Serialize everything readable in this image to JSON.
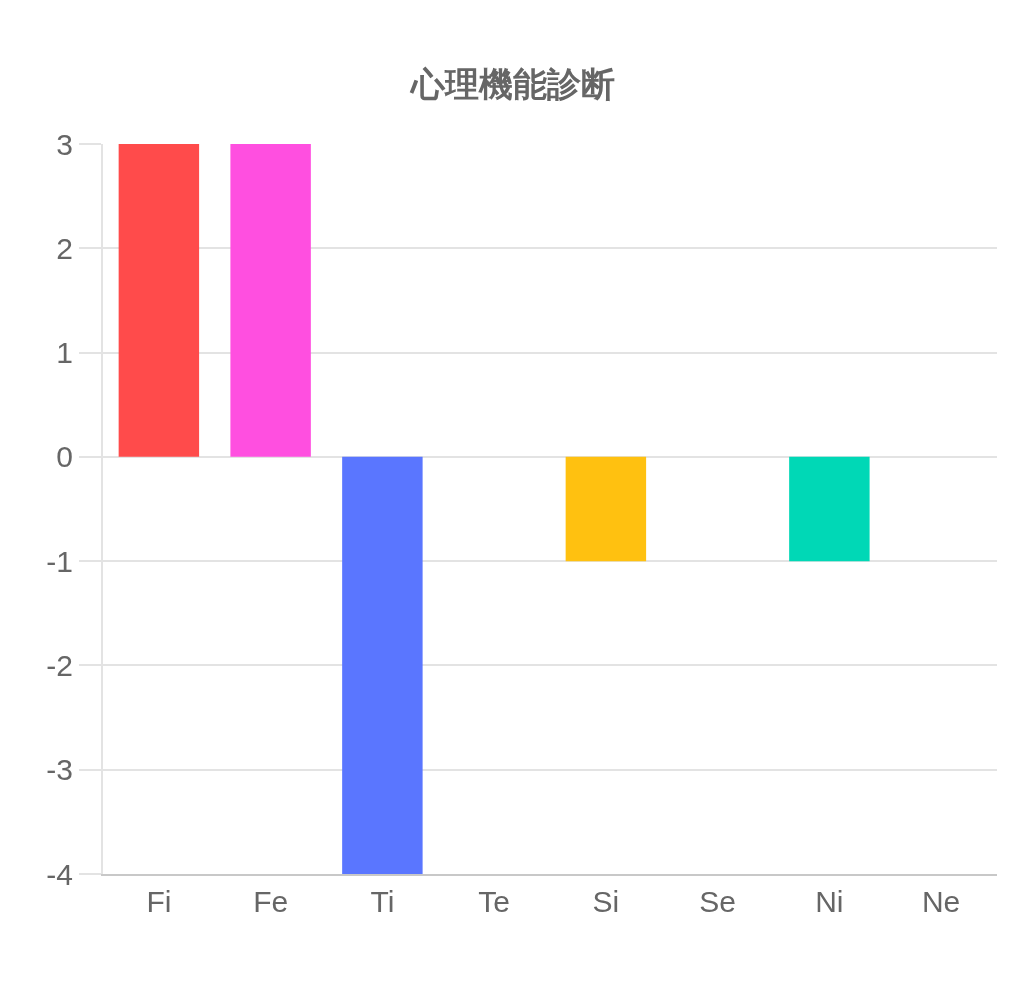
{
  "chart_data": {
    "type": "bar",
    "title": "心理機能診断",
    "categories": [
      "Fi",
      "Fe",
      "Ti",
      "Te",
      "Si",
      "Se",
      "Ni",
      "Ne"
    ],
    "values": [
      3,
      3,
      -4,
      0,
      -1,
      0,
      -1,
      0
    ],
    "colors": [
      "#ff4b4b",
      "#ff4fe0",
      "#5a76ff",
      "#9966ff",
      "#ffc110",
      "#ff9f40",
      "#00d8b6",
      "#36a2eb"
    ],
    "ylim": [
      -4,
      3
    ],
    "yticks": [
      -4,
      -3,
      -2,
      -1,
      0,
      1,
      2,
      3
    ],
    "grid": "y"
  }
}
